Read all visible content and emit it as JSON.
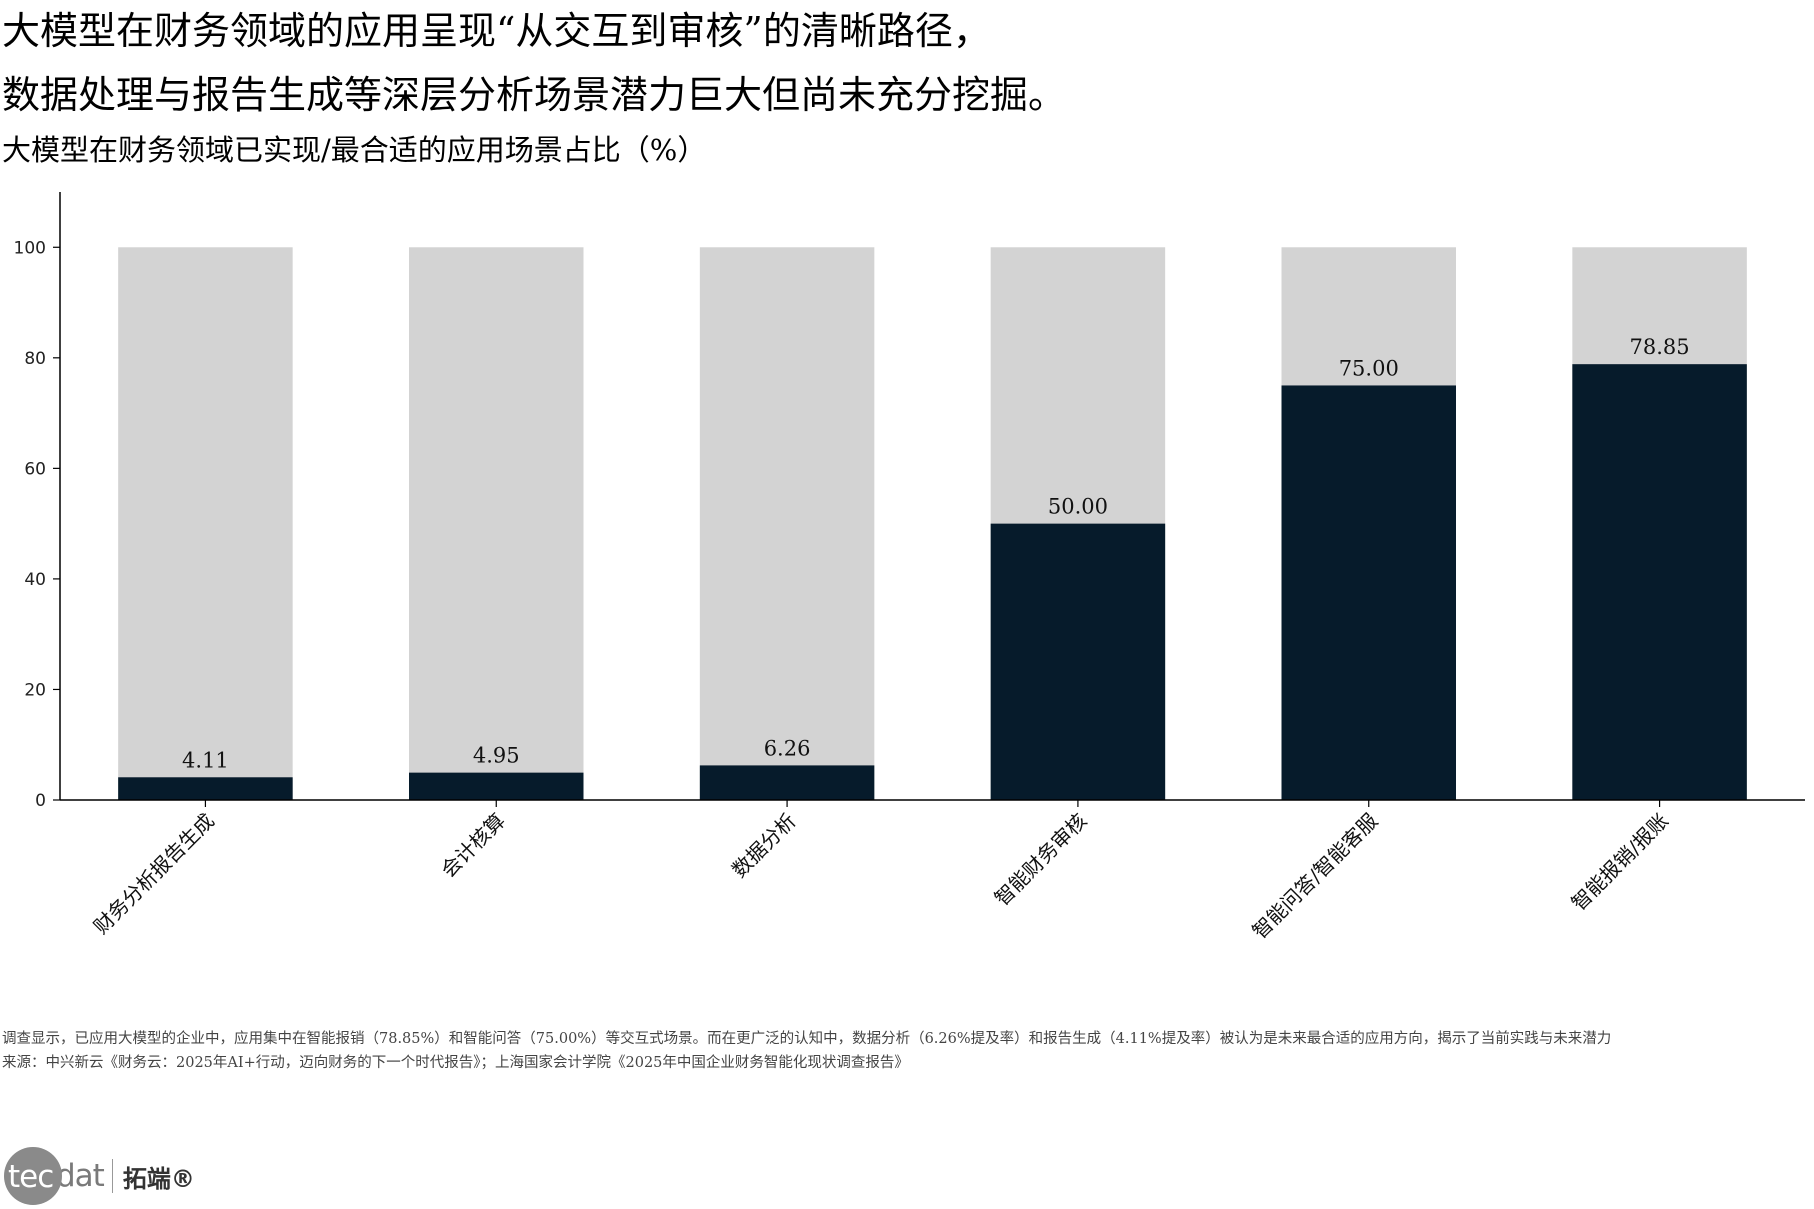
{
  "headline": {
    "line1": "大模型在财务领域的应用呈现“从交互到审核”的清晰路径，",
    "line2": "数据处理与报告生成等深层分析场景潜力巨大但尚未充分挖掘。"
  },
  "chart_data": {
    "type": "bar",
    "title": "大模型在财务领域已实现/最合适的应用场景占比（%）",
    "xlabel": "",
    "ylabel": "",
    "ylim": [
      0,
      110
    ],
    "yticks": [
      "0",
      "20",
      "40",
      "60",
      "80",
      "100"
    ],
    "grid": false,
    "legend": "none",
    "categories": [
      "财务分析报告生成",
      "会计核算",
      "数据分析",
      "智能财务审核",
      "智能问答/智能客服",
      "智能报销/报账"
    ],
    "values": [
      4.11,
      4.95,
      6.26,
      50.0,
      75.0,
      78.85
    ],
    "value_labels": [
      "4.11",
      "4.95",
      "6.26",
      "50.00",
      "75.00",
      "78.85"
    ],
    "background_value": 100,
    "colors": {
      "bar": "#061b2b",
      "background_bar": "#d3d3d3",
      "axis": "#000000"
    }
  },
  "footnotes": {
    "note": "调查显示，已应用大模型的企业中，应用集中在智能报销（78.85%）和智能问答（75.00%）等交互式场景。而在更广泛的认知中，数据分析（6.26%提及率）和报告生成（4.11%提及率）被认为是未来最合适的应用方向，揭示了当前实践与未来潜力",
    "source": "来源：中兴新云《财务云：2025年AI+行动，迈向财务的下一个时代报告》；上海国家会计学院《2025年中国企业财务智能化现状调查报告》"
  },
  "logo": {
    "badge": "tec",
    "tail": "dat",
    "cn": "拓端®"
  }
}
